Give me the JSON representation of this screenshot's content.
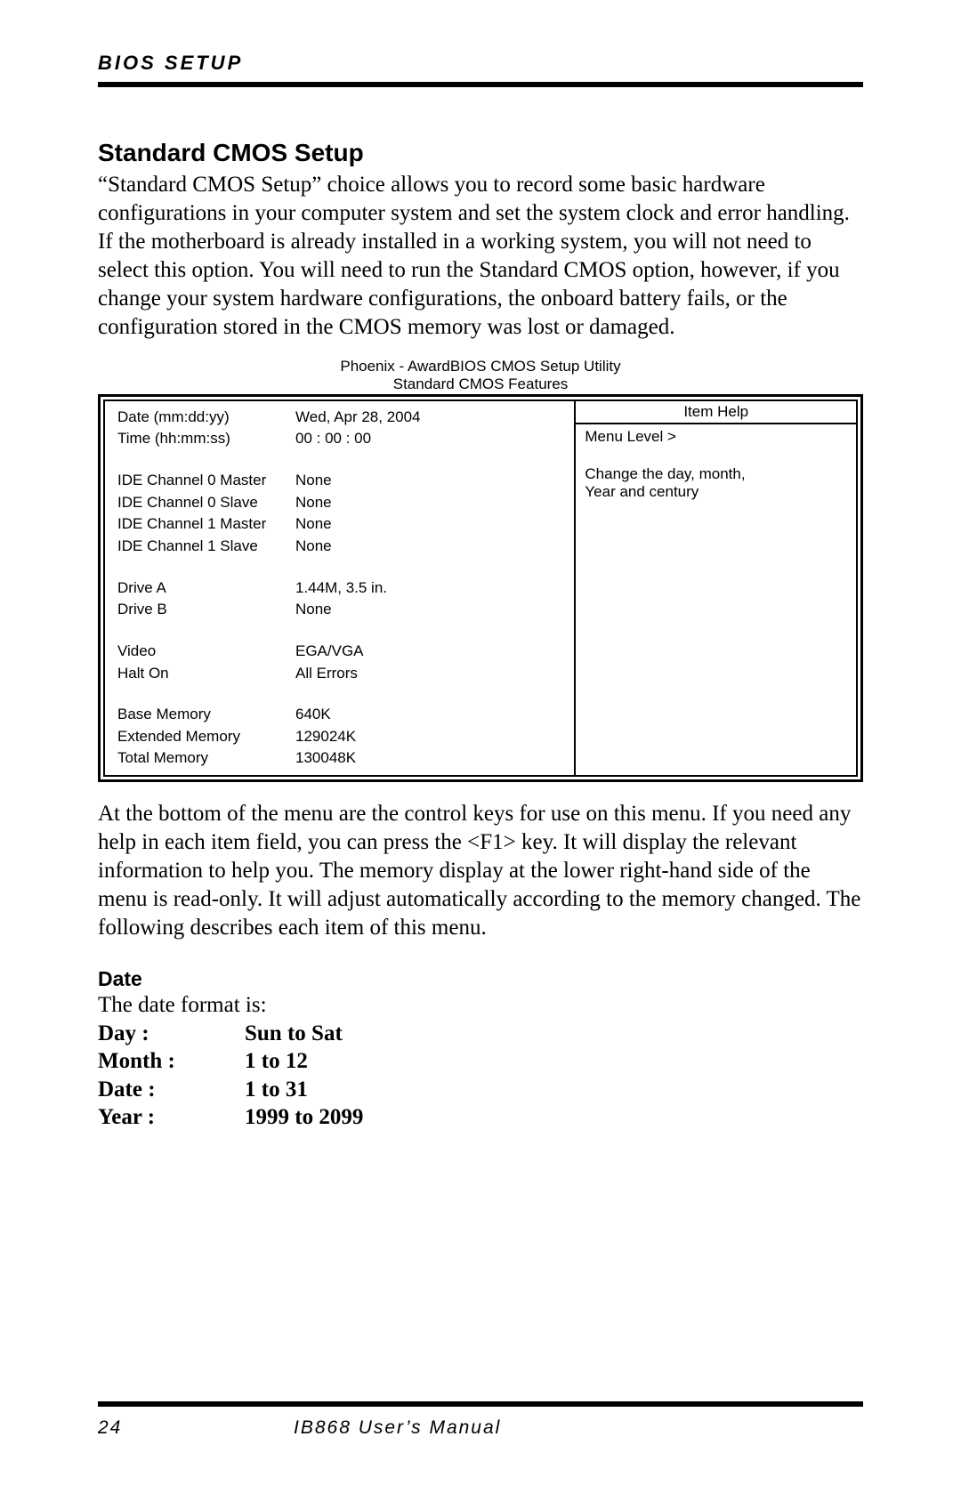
{
  "header": {
    "title": "BIOS SETUP"
  },
  "section": {
    "heading": "Standard CMOS Setup",
    "paragraph1": "“Standard CMOS Setup” choice allows you to record some basic hardware configurations in your computer system and set the system clock and error handling. If the motherboard is already installed in a working system, you will not need to select this option. You will need to run the Standard CMOS option, however, if you change your system hardware configurations, the onboard battery fails, or the configuration stored in the CMOS memory was lost or damaged."
  },
  "bios": {
    "captionLine1": "Phoenix - AwardBIOS CMOS Setup Utility",
    "captionLine2": "Standard CMOS Features",
    "rows": {
      "date": {
        "label": "Date (mm:dd:yy)",
        "value": "Wed,  Apr 28, 2004"
      },
      "time": {
        "label": "Time (hh:mm:ss)",
        "value": "00 : 00 : 00"
      },
      "ide0m": {
        "label": "IDE Channel 0 Master",
        "value": "None"
      },
      "ide0s": {
        "label": "IDE Channel 0 Slave",
        "value": "None"
      },
      "ide1m": {
        "label": "IDE Channel 1 Master",
        "value": "None"
      },
      "ide1s": {
        "label": "IDE Channel 1 Slave",
        "value": "None"
      },
      "driveA": {
        "label": "Drive A",
        "value": "1.44M, 3.5 in."
      },
      "driveB": {
        "label": "Drive B",
        "value": "None"
      },
      "video": {
        "label": "Video",
        "value": "EGA/VGA"
      },
      "halt": {
        "label": "Halt On",
        "value": "All Errors"
      },
      "baseMem": {
        "label": "Base Memory",
        "value": "640K"
      },
      "extMem": {
        "label": "Extended Memory",
        "value": "129024K"
      },
      "totalMem": {
        "label": "Total Memory",
        "value": "130048K"
      }
    },
    "help": {
      "header": "Item Help",
      "menuLevel": "Menu Level  >",
      "line1": "Change the day, month,",
      "line2": "Year and century"
    }
  },
  "paragraph2": "At the bottom of the menu are the control keys for use on this menu. If you need any help in each item field, you can press the <F1> key. It will display the relevant information to help you. The memory display at the lower right-hand side of the menu is read-only. It will adjust automatically according to the memory changed. The following describes each item of this menu.",
  "dateSection": {
    "heading": "Date",
    "intro": "The date format is:",
    "rows": {
      "day": {
        "key": "Day :",
        "val": "Sun to Sat"
      },
      "month": {
        "key": "Month :",
        "val": "1 to 12"
      },
      "date": {
        "key": "Date :",
        "val": "1 to 31"
      },
      "year": {
        "key": "Year :",
        "val": "1999 to 2099"
      }
    }
  },
  "footer": {
    "page": "24",
    "title": "IB868 User’s Manual"
  }
}
